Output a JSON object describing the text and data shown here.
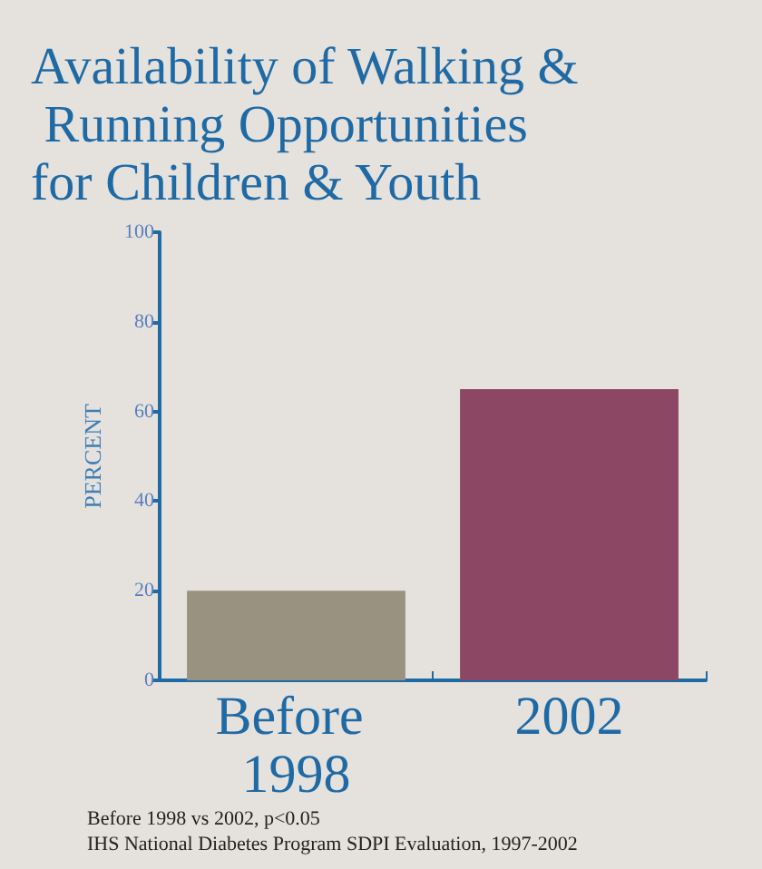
{
  "chart_data": {
    "type": "bar",
    "title": "Availability of Walking & Running Opportunities for Children & Youth",
    "ylabel": "PERCENT",
    "categories": [
      "Before 1998",
      "2002"
    ],
    "values": [
      20,
      65
    ],
    "colors": [
      "#9a9280",
      "#8c4764"
    ],
    "ylim": [
      0,
      100
    ],
    "yticks": [
      0,
      20,
      40,
      60,
      80,
      100
    ],
    "grid": false,
    "annotations": [
      "Before 1998 vs 2002, p<0.05",
      "IHS National Diabetes Program SDPI Evaluation, 1997-2002"
    ]
  }
}
